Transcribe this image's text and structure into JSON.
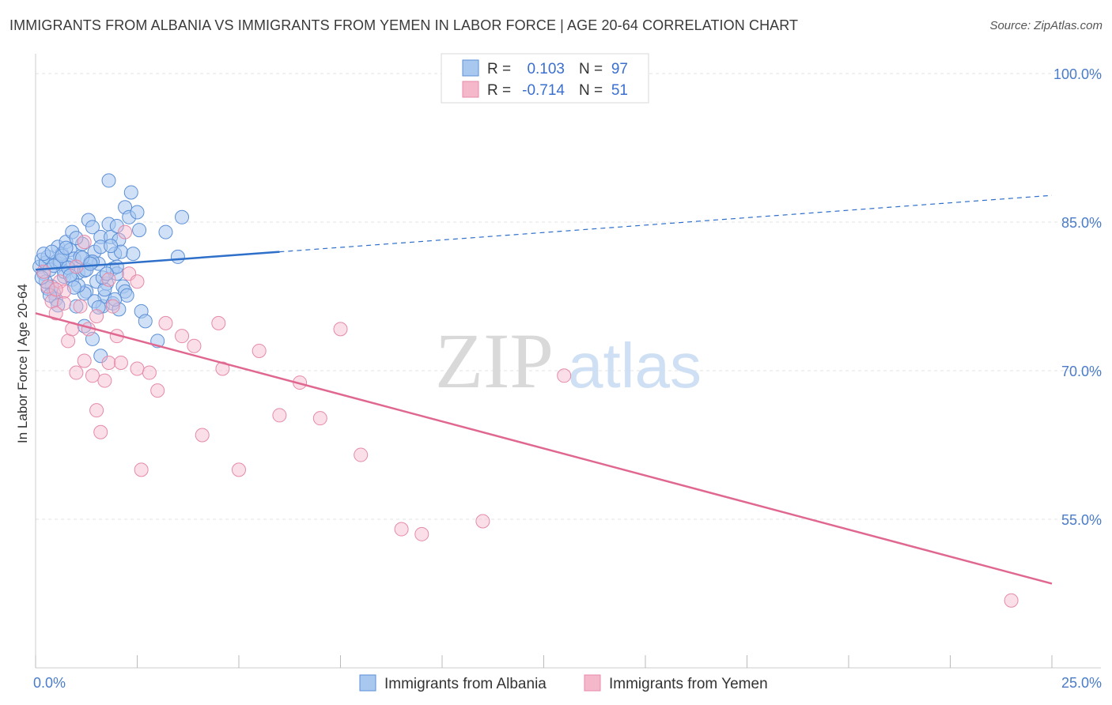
{
  "title": "IMMIGRANTS FROM ALBANIA VS IMMIGRANTS FROM YEMEN IN LABOR FORCE | AGE 20-64 CORRELATION CHART",
  "source": "Source: ZipAtlas.com",
  "watermark": {
    "zip": "ZIP",
    "atlas": "atlas"
  },
  "colors": {
    "albania_fill": "#a9c8f0",
    "albania_stroke": "#5b8fd6",
    "albania_line": "#2e6fc9",
    "yemen_fill": "#f5b8cb",
    "yemen_stroke": "#e58aa8",
    "yemen_line": "#e0678f",
    "tick_text": "#4a7cc9",
    "grid": "#e3e3e3"
  },
  "legend_box": {
    "rows": [
      {
        "r_label": "R =",
        "r_value": "0.103",
        "n_label": "N =",
        "n_value": "97"
      },
      {
        "r_label": "R =",
        "r_value": "-0.714",
        "n_label": "N =",
        "n_value": "51"
      }
    ]
  },
  "chart_data": {
    "type": "scatter",
    "xlabel": "",
    "ylabel": "In Labor Force | Age 20-64",
    "xlim": [
      0,
      25
    ],
    "ylim": [
      40,
      102
    ],
    "x_tick_labels": [
      {
        "value": 0,
        "label": "0.0%"
      },
      {
        "value": 25,
        "label": "25.0%"
      }
    ],
    "y_tick_labels": [
      {
        "value": 100,
        "label": "100.0%"
      },
      {
        "value": 85,
        "label": "85.0%"
      },
      {
        "value": 70,
        "label": "70.0%"
      },
      {
        "value": 55,
        "label": "55.0%"
      }
    ],
    "grid": true,
    "legend_position": "bottom",
    "series": [
      {
        "name": "Immigrants from Albania",
        "trend": {
          "x0": 0,
          "y0": 80.2,
          "x1": 6,
          "y1": 82.0,
          "dashed_to_x": 25,
          "dashed_to_y": 87.7
        },
        "points": [
          [
            0.1,
            80.5
          ],
          [
            0.15,
            81.2
          ],
          [
            0.2,
            79.8
          ],
          [
            0.25,
            80.9
          ],
          [
            0.3,
            81.5
          ],
          [
            0.35,
            80.2
          ],
          [
            0.4,
            78.5
          ],
          [
            0.45,
            77.8
          ],
          [
            0.5,
            81.0
          ],
          [
            0.55,
            82.5
          ],
          [
            0.6,
            80.8
          ],
          [
            0.65,
            81.8
          ],
          [
            0.7,
            79.5
          ],
          [
            0.75,
            83.0
          ],
          [
            0.8,
            80.7
          ],
          [
            0.85,
            82.2
          ],
          [
            0.9,
            84.0
          ],
          [
            0.95,
            81.3
          ],
          [
            1.0,
            80.5
          ],
          [
            1.05,
            79.9
          ],
          [
            1.1,
            81.5
          ],
          [
            1.15,
            82.8
          ],
          [
            1.2,
            80.1
          ],
          [
            1.25,
            78.0
          ],
          [
            1.3,
            85.2
          ],
          [
            1.35,
            81.0
          ],
          [
            1.4,
            84.5
          ],
          [
            1.45,
            82.0
          ],
          [
            1.5,
            79.0
          ],
          [
            1.55,
            80.8
          ],
          [
            1.6,
            83.5
          ],
          [
            1.65,
            76.5
          ],
          [
            1.7,
            77.5
          ],
          [
            1.75,
            78.8
          ],
          [
            1.8,
            84.8
          ],
          [
            1.85,
            83.5
          ],
          [
            1.9,
            80.3
          ],
          [
            1.95,
            81.8
          ],
          [
            2.0,
            79.8
          ],
          [
            2.05,
            83.2
          ],
          [
            2.1,
            82.0
          ],
          [
            2.15,
            78.5
          ],
          [
            2.2,
            86.5
          ],
          [
            2.3,
            85.5
          ],
          [
            2.35,
            88.0
          ],
          [
            2.5,
            86.0
          ],
          [
            2.55,
            84.2
          ],
          [
            2.6,
            76.0
          ],
          [
            2.7,
            75.0
          ],
          [
            3.0,
            73.0
          ],
          [
            3.2,
            84.0
          ],
          [
            3.5,
            81.5
          ],
          [
            3.6,
            85.5
          ],
          [
            0.3,
            78.3
          ],
          [
            0.5,
            77.2
          ],
          [
            0.7,
            80.0
          ],
          [
            0.9,
            79.2
          ],
          [
            1.0,
            76.5
          ],
          [
            1.2,
            77.8
          ],
          [
            1.4,
            81.0
          ],
          [
            1.6,
            82.5
          ],
          [
            1.7,
            78.2
          ],
          [
            1.9,
            76.8
          ],
          [
            2.0,
            80.5
          ],
          [
            2.2,
            78.0
          ],
          [
            0.2,
            81.8
          ],
          [
            0.4,
            82.0
          ],
          [
            0.6,
            81.1
          ],
          [
            0.8,
            80.4
          ],
          [
            1.0,
            83.4
          ],
          [
            1.2,
            74.5
          ],
          [
            1.4,
            73.2
          ],
          [
            1.6,
            71.5
          ],
          [
            1.8,
            89.2
          ],
          [
            2.0,
            84.6
          ],
          [
            2.4,
            81.8
          ],
          [
            0.25,
            79.0
          ],
          [
            0.45,
            80.6
          ],
          [
            0.65,
            81.6
          ],
          [
            0.85,
            79.6
          ],
          [
            1.05,
            78.6
          ],
          [
            1.25,
            80.2
          ],
          [
            1.45,
            77.0
          ],
          [
            1.65,
            79.4
          ],
          [
            1.85,
            82.6
          ],
          [
            2.05,
            76.2
          ],
          [
            2.25,
            77.6
          ],
          [
            0.15,
            79.4
          ],
          [
            0.35,
            77.6
          ],
          [
            0.55,
            76.6
          ],
          [
            0.75,
            82.4
          ],
          [
            0.95,
            78.4
          ],
          [
            1.15,
            81.4
          ],
          [
            1.35,
            80.8
          ],
          [
            1.55,
            76.4
          ],
          [
            1.75,
            79.8
          ],
          [
            1.95,
            77.2
          ]
        ]
      },
      {
        "name": "Immigrants from Yemen",
        "trend": {
          "x0": 0,
          "y0": 75.8,
          "x1": 25,
          "y1": 48.5
        },
        "points": [
          [
            0.2,
            80.0
          ],
          [
            0.3,
            78.5
          ],
          [
            0.4,
            77.0
          ],
          [
            0.5,
            75.8
          ],
          [
            0.6,
            79.0
          ],
          [
            0.7,
            78.0
          ],
          [
            0.8,
            73.0
          ],
          [
            0.9,
            74.2
          ],
          [
            1.0,
            69.8
          ],
          [
            1.1,
            76.5
          ],
          [
            1.2,
            71.0
          ],
          [
            1.3,
            74.2
          ],
          [
            1.4,
            69.5
          ],
          [
            1.5,
            66.0
          ],
          [
            1.6,
            63.8
          ],
          [
            1.7,
            69.0
          ],
          [
            1.8,
            70.8
          ],
          [
            1.9,
            76.5
          ],
          [
            2.0,
            73.5
          ],
          [
            2.1,
            70.8
          ],
          [
            2.2,
            84.0
          ],
          [
            2.3,
            79.8
          ],
          [
            2.5,
            70.2
          ],
          [
            2.6,
            60.0
          ],
          [
            2.8,
            69.8
          ],
          [
            3.0,
            68.0
          ],
          [
            3.2,
            74.8
          ],
          [
            3.6,
            73.5
          ],
          [
            3.9,
            72.5
          ],
          [
            4.1,
            63.5
          ],
          [
            4.5,
            74.8
          ],
          [
            4.6,
            70.2
          ],
          [
            5.0,
            60.0
          ],
          [
            5.5,
            72.0
          ],
          [
            6.0,
            65.5
          ],
          [
            6.5,
            68.8
          ],
          [
            7.0,
            65.2
          ],
          [
            7.5,
            74.2
          ],
          [
            8.0,
            61.5
          ],
          [
            9.0,
            54.0
          ],
          [
            9.5,
            53.5
          ],
          [
            11.0,
            54.8
          ],
          [
            13.0,
            69.5
          ],
          [
            24.0,
            46.8
          ],
          [
            0.5,
            78.2
          ],
          [
            1.0,
            80.5
          ],
          [
            1.5,
            75.5
          ],
          [
            2.5,
            79.0
          ],
          [
            0.7,
            76.8
          ],
          [
            1.2,
            83.0
          ],
          [
            1.8,
            79.2
          ]
        ]
      }
    ]
  },
  "bottom_legend": [
    {
      "label": "Immigrants from Albania"
    },
    {
      "label": "Immigrants from Yemen"
    }
  ]
}
